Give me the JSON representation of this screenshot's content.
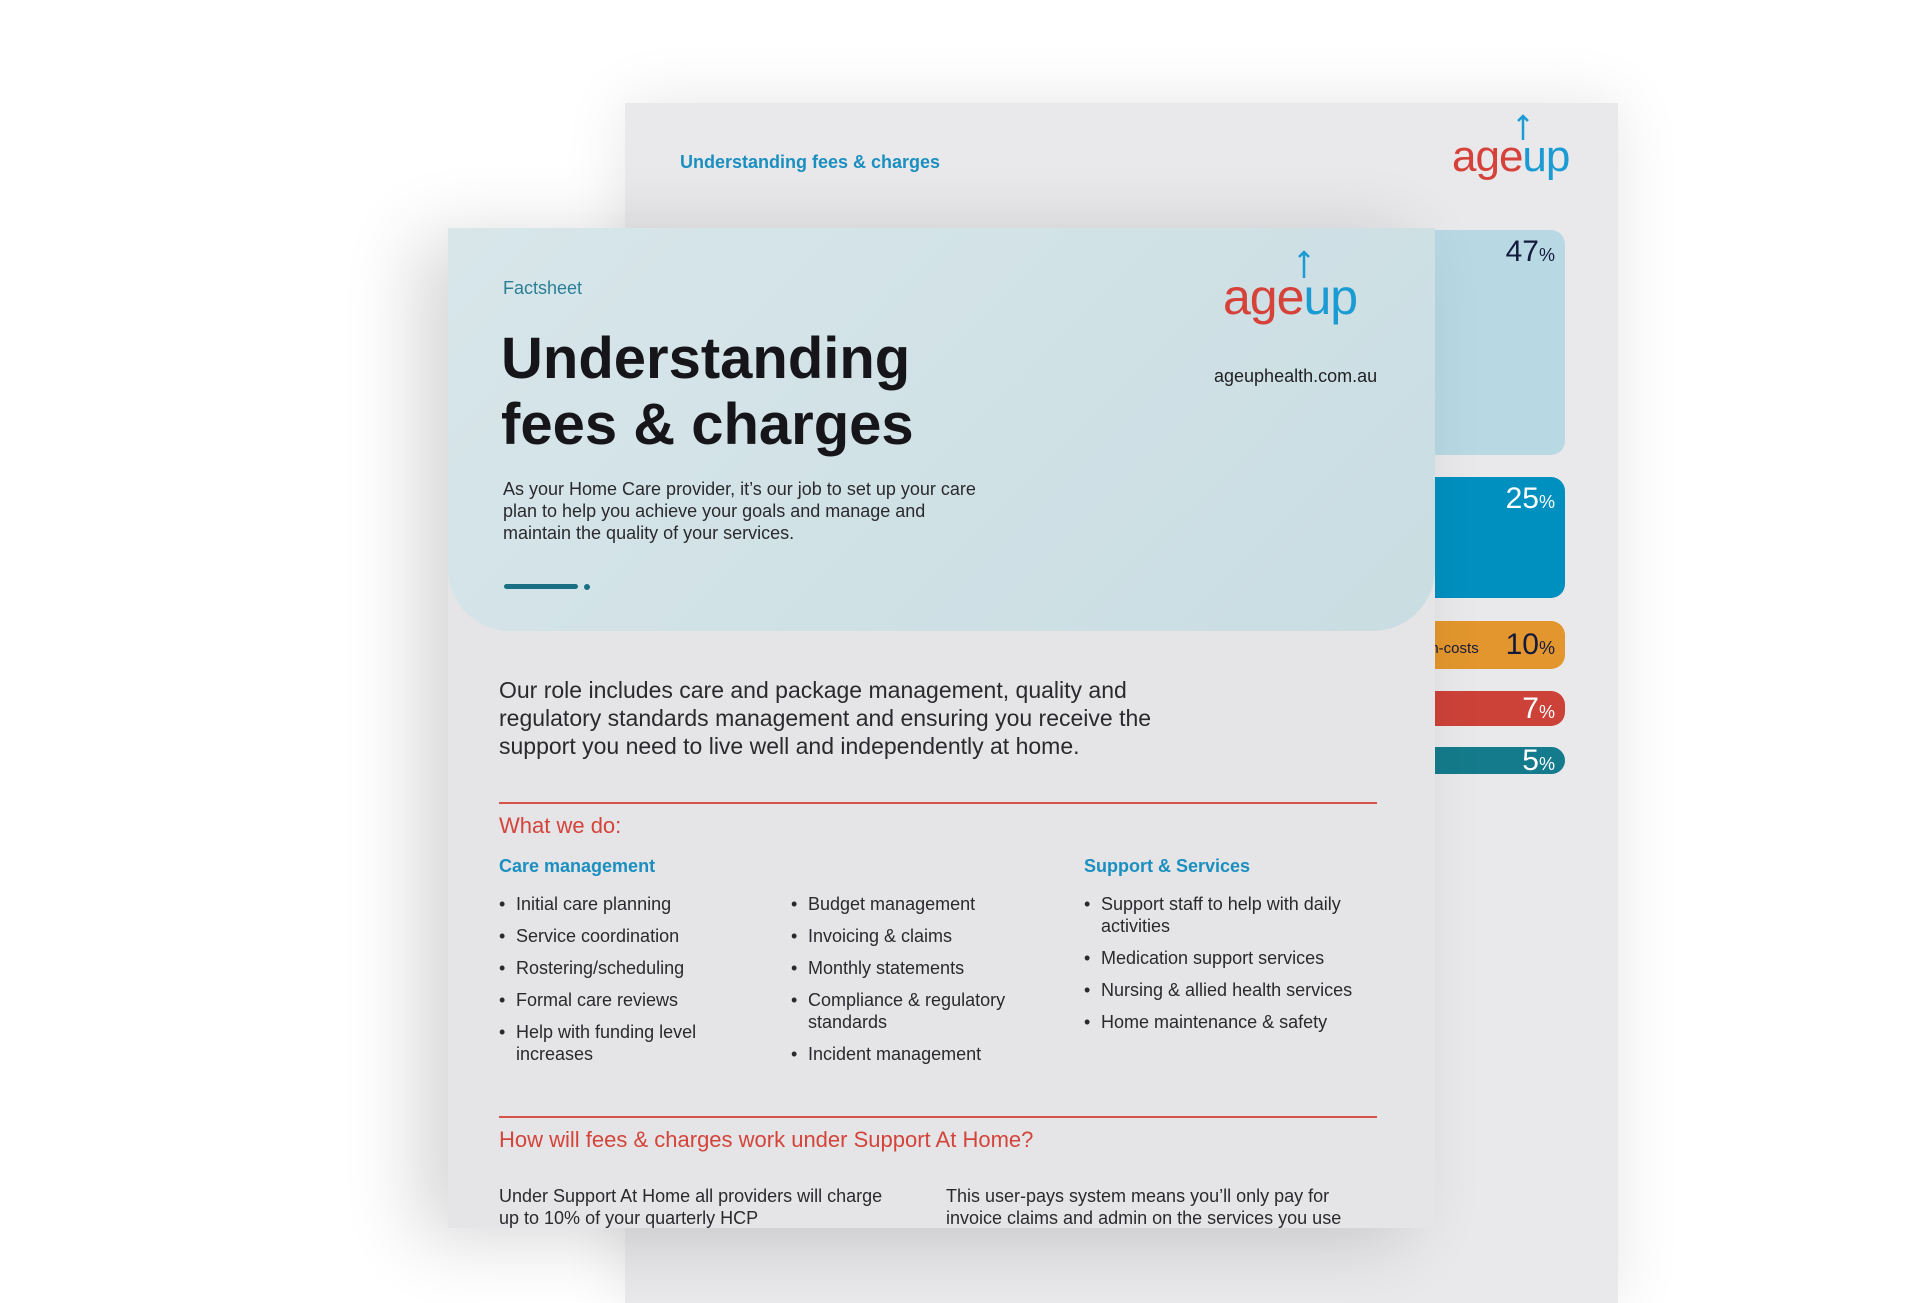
{
  "back_page": {
    "header": "Understanding fees & charges",
    "logo": {
      "part1": "age",
      "part2": "up"
    },
    "bars": [
      {
        "label": "",
        "value": "47",
        "unit": "%",
        "color": "#b8d9e4",
        "text_color": "#141a3c"
      },
      {
        "label": "",
        "value": "25",
        "unit": "%",
        "color": "#0090c0",
        "text_color": "#ffffff"
      },
      {
        "label": "on-costs",
        "value": "10",
        "unit": "%",
        "color": "#e3962d",
        "text_color": "#141a3c"
      },
      {
        "label": "",
        "value": "7",
        "unit": "%",
        "color": "#cc4239",
        "text_color": "#ffffff"
      },
      {
        "label": "",
        "value": "5",
        "unit": "%",
        "color": "#147b8c",
        "text_color": "#ffffff"
      }
    ]
  },
  "front_page": {
    "kicker": "Factsheet",
    "title_line1": "Understanding",
    "title_line2": "fees & charges",
    "intro": "As your Home Care provider, it’s our job to set up your care plan to help you achieve your goals and manage and maintain the quality of your services.",
    "logo": {
      "part1": "age",
      "part2": "up"
    },
    "url": "ageuphealth.com.au",
    "body": "Our role includes care and package management, quality and regulatory standards management and ensuring you receive the support you need to live well and independently at home.",
    "what_we_do": {
      "heading": "What we do:",
      "care_heading": "Care management",
      "support_heading": "Support & Services",
      "col1": [
        "Initial care planning",
        "Service coordination",
        "Rostering/scheduling",
        "Formal care reviews",
        "Help with funding level increases"
      ],
      "col2": [
        "Budget management",
        "Invoicing & claims",
        "Monthly statements",
        "Compliance & regulatory standards",
        "Incident management"
      ],
      "col3": [
        "Support staff to help with daily activities",
        "Medication support services",
        "Nursing & allied health services",
        "Home maintenance & safety"
      ]
    },
    "fees": {
      "heading": "How will fees & charges work under Support At Home?",
      "para1": "Under Support At Home all providers will charge up to 10% of your quarterly HCP",
      "para2": "This user-pays system means you’ll only pay for invoice claims and admin on the services you use"
    }
  }
}
